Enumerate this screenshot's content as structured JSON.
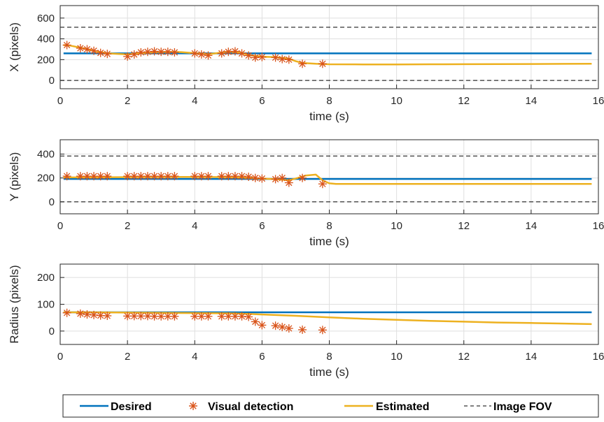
{
  "chart_data": [
    {
      "type": "line",
      "ylabel": "X (pixels)",
      "xlabel": "time (s)",
      "xlim": [
        0,
        16
      ],
      "ylim": [
        -80,
        720
      ],
      "xticks": [
        "0",
        "2",
        "4",
        "6",
        "8",
        "10",
        "12",
        "14",
        "16"
      ],
      "yticks": [
        "0",
        "200",
        "400",
        "600"
      ],
      "grid": true,
      "series": [
        {
          "name": "Desired",
          "color": "#0072BD",
          "x": [
            0.1,
            15.8
          ],
          "y": [
            260,
            260
          ]
        },
        {
          "name": "Visual detection",
          "color": "#D95319",
          "marker": "asterisk",
          "x": [
            0.2,
            0.6,
            0.8,
            1.0,
            1.2,
            1.4,
            2.0,
            2.2,
            2.4,
            2.6,
            2.8,
            3.0,
            3.2,
            3.4,
            4.0,
            4.2,
            4.4,
            4.8,
            5.0,
            5.2,
            5.4,
            5.6,
            5.8,
            6.0,
            6.4,
            6.6,
            6.8,
            7.2,
            7.8
          ],
          "y": [
            340,
            310,
            300,
            285,
            265,
            255,
            230,
            250,
            270,
            275,
            280,
            275,
            275,
            270,
            260,
            250,
            240,
            260,
            275,
            280,
            260,
            240,
            220,
            225,
            220,
            205,
            200,
            160,
            160
          ]
        },
        {
          "name": "Estimated",
          "color": "#EDB120",
          "x": [
            0.1,
            0.3,
            0.6,
            1.0,
            1.4,
            2.0,
            2.4,
            2.8,
            3.2,
            3.6,
            4.0,
            4.4,
            4.8,
            5.0,
            5.4,
            5.6,
            6.0,
            6.4,
            6.8,
            7.0,
            7.2,
            7.6,
            7.8,
            8.0,
            9,
            10,
            11,
            12,
            13,
            14,
            15,
            15.8
          ],
          "y": [
            340,
            335,
            315,
            285,
            260,
            250,
            262,
            272,
            275,
            272,
            262,
            252,
            268,
            278,
            265,
            245,
            228,
            224,
            210,
            185,
            168,
            160,
            158,
            155,
            154,
            154,
            155,
            156,
            157,
            158,
            159,
            160
          ]
        }
      ],
      "reference_lines": {
        "name": "Image FOV",
        "color": "#000000",
        "style": "dashed",
        "y": [
          0,
          512
        ]
      }
    },
    {
      "type": "line",
      "ylabel": "Y (pixels)",
      "xlabel": "time (s)",
      "xlim": [
        0,
        16
      ],
      "ylim": [
        -100,
        520
      ],
      "xticks": [
        "0",
        "2",
        "4",
        "6",
        "8",
        "10",
        "12",
        "14",
        "16"
      ],
      "yticks": [
        "0",
        "200",
        "400"
      ],
      "grid": true,
      "series": [
        {
          "name": "Desired",
          "color": "#0072BD",
          "x": [
            0.1,
            15.8
          ],
          "y": [
            192,
            192
          ]
        },
        {
          "name": "Visual detection",
          "color": "#D95319",
          "marker": "asterisk",
          "x": [
            0.2,
            0.6,
            0.8,
            1.0,
            1.2,
            1.4,
            2.0,
            2.2,
            2.4,
            2.6,
            2.8,
            3.0,
            3.2,
            3.4,
            4.0,
            4.2,
            4.4,
            4.8,
            5.0,
            5.2,
            5.4,
            5.6,
            5.8,
            6.0,
            6.4,
            6.6,
            6.8,
            7.2,
            7.8
          ],
          "y": [
            215,
            215,
            215,
            215,
            215,
            215,
            215,
            215,
            215,
            215,
            215,
            215,
            215,
            215,
            215,
            215,
            215,
            215,
            215,
            215,
            215,
            210,
            200,
            195,
            190,
            200,
            160,
            200,
            150
          ]
        },
        {
          "name": "Estimated",
          "color": "#EDB120",
          "x": [
            0.1,
            1,
            2,
            3,
            4,
            5,
            5.6,
            6.0,
            6.4,
            6.8,
            7.0,
            7.3,
            7.6,
            7.8,
            8.0,
            8.2,
            9,
            10,
            12,
            14,
            15.8
          ],
          "y": [
            205,
            205,
            207,
            208,
            208,
            207,
            202,
            195,
            190,
            180,
            195,
            220,
            228,
            180,
            155,
            150,
            150,
            150,
            150,
            150,
            150
          ]
        }
      ],
      "reference_lines": {
        "name": "Image FOV",
        "color": "#000000",
        "style": "dashed",
        "y": [
          0,
          384
        ]
      }
    },
    {
      "type": "line",
      "ylabel": "Radius (pixels)",
      "xlabel": "time (s)",
      "xlim": [
        0,
        16
      ],
      "ylim": [
        -50,
        250
      ],
      "xticks": [
        "0",
        "2",
        "4",
        "6",
        "8",
        "10",
        "12",
        "14",
        "16"
      ],
      "yticks": [
        "0",
        "100",
        "200"
      ],
      "grid": true,
      "series": [
        {
          "name": "Desired",
          "color": "#0072BD",
          "x": [
            0.1,
            15.8
          ],
          "y": [
            70,
            70
          ]
        },
        {
          "name": "Visual detection",
          "color": "#D95319",
          "marker": "asterisk",
          "x": [
            0.2,
            0.6,
            0.8,
            1.0,
            1.2,
            1.4,
            2.0,
            2.2,
            2.4,
            2.6,
            2.8,
            3.0,
            3.2,
            3.4,
            4.0,
            4.2,
            4.4,
            4.8,
            5.0,
            5.2,
            5.4,
            5.6,
            5.8,
            6.0,
            6.4,
            6.6,
            6.8,
            7.2,
            7.8
          ],
          "y": [
            68,
            65,
            62,
            60,
            58,
            57,
            56,
            56,
            56,
            56,
            55,
            55,
            55,
            55,
            55,
            55,
            55,
            55,
            55,
            55,
            55,
            53,
            35,
            22,
            20,
            15,
            10,
            5,
            4
          ]
        },
        {
          "name": "Estimated",
          "color": "#EDB120",
          "x": [
            0.1,
            1,
            2,
            3,
            4,
            5,
            5.6,
            6,
            7,
            8,
            9,
            10,
            11,
            12,
            13,
            14,
            15,
            15.8
          ],
          "y": [
            70,
            70,
            69,
            68,
            67,
            66,
            64,
            62,
            57,
            51,
            46,
            42,
            38,
            35,
            32,
            30,
            28,
            26
          ]
        }
      ]
    }
  ],
  "legend": {
    "placement": "bottom",
    "entries": [
      {
        "label": "Desired",
        "color": "#0072BD",
        "kind": "line"
      },
      {
        "label": "Visual detection",
        "color": "#D95319",
        "kind": "asterisk"
      },
      {
        "label": "Estimated",
        "color": "#EDB120",
        "kind": "line"
      },
      {
        "label": "Image FOV",
        "color": "#000000",
        "kind": "dashed"
      }
    ]
  }
}
